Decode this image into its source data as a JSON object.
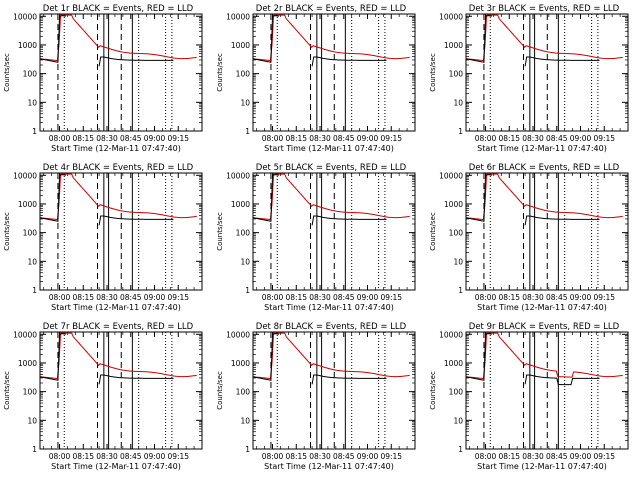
{
  "chart_data": [
    {
      "type": "line",
      "title": "Det 1r BLACK = Events, RED = LLD",
      "xlabel": "Start Time (12-Mar-11 07:47:40)",
      "ylabel": "Counts/sec",
      "yscale": "log",
      "ylim": [
        1,
        12000
      ],
      "xlim": [
        "07:47:40",
        "09:30:00"
      ],
      "xticks": [
        "08:00",
        "08:15",
        "08:30",
        "08:45",
        "09:00",
        "09:15"
      ],
      "yticks": [
        "1",
        "10",
        "100",
        "1000",
        "10000"
      ],
      "series": [
        {
          "name": "BLACK = Events",
          "color": "#000000"
        },
        {
          "name": "RED = LLD",
          "color": "#cc0000"
        }
      ]
    },
    {
      "type": "line",
      "title": "Det 2r BLACK = Events, RED = LLD",
      "xlabel": "Start Time (12-Mar-11 07:47:40)",
      "ylabel": "Counts/sec",
      "yscale": "log",
      "ylim": [
        1,
        12000
      ],
      "xticks": [
        "08:00",
        "08:15",
        "08:30",
        "08:45",
        "09:00",
        "09:15"
      ],
      "yticks": [
        "1",
        "10",
        "100",
        "1000",
        "10000"
      ]
    },
    {
      "type": "line",
      "title": "Det 3r BLACK = Events, RED = LLD",
      "xlabel": "Start Time (12-Mar-11 07:47:40)",
      "ylabel": "Counts/sec",
      "yscale": "log",
      "ylim": [
        1,
        12000
      ],
      "xticks": [
        "08:00",
        "08:15",
        "08:30",
        "08:45",
        "09:00",
        "09:15"
      ],
      "yticks": [
        "1",
        "10",
        "100",
        "1000",
        "10000"
      ]
    },
    {
      "type": "line",
      "title": "Det 4r BLACK = Events, RED = LLD",
      "xlabel": "Start Time (12-Mar-11 07:47:40)",
      "ylabel": "Counts/sec",
      "yscale": "log",
      "ylim": [
        1,
        12000
      ],
      "xticks": [
        "08:00",
        "08:15",
        "08:30",
        "08:45",
        "09:00",
        "09:15"
      ],
      "yticks": [
        "1",
        "10",
        "100",
        "1000",
        "10000"
      ]
    },
    {
      "type": "line",
      "title": "Det 5r BLACK = Events, RED = LLD",
      "xlabel": "Start Time (12-Mar-11 07:47:40)",
      "ylabel": "Counts/sec",
      "yscale": "log",
      "ylim": [
        1,
        12000
      ],
      "xticks": [
        "08:00",
        "08:15",
        "08:30",
        "08:45",
        "09:00",
        "09:15"
      ],
      "yticks": [
        "1",
        "10",
        "100",
        "1000",
        "10000"
      ]
    },
    {
      "type": "line",
      "title": "Det 6r BLACK = Events, RED = LLD",
      "xlabel": "Start Time (12-Mar-11 07:47:40)",
      "ylabel": "Counts/sec",
      "yscale": "log",
      "ylim": [
        1,
        12000
      ],
      "xticks": [
        "08:00",
        "08:15",
        "08:30",
        "08:45",
        "09:00",
        "09:15"
      ],
      "yticks": [
        "1",
        "10",
        "100",
        "1000",
        "10000"
      ]
    },
    {
      "type": "line",
      "title": "Det 7r BLACK = Events, RED = LLD",
      "xlabel": "Start Time (12-Mar-11 07:47:40)",
      "ylabel": "Counts/sec",
      "yscale": "log",
      "ylim": [
        1,
        12000
      ],
      "xticks": [
        "08:00",
        "08:15",
        "08:30",
        "08:45",
        "09:00",
        "09:15"
      ],
      "yticks": [
        "1",
        "10",
        "100",
        "1000",
        "10000"
      ]
    },
    {
      "type": "line",
      "title": "Det 8r BLACK = Events, RED = LLD",
      "xlabel": "Start Time (12-Mar-11 07:47:40)",
      "ylabel": "Counts/sec",
      "yscale": "log",
      "ylim": [
        1,
        12000
      ],
      "xticks": [
        "08:00",
        "08:15",
        "08:30",
        "08:45",
        "09:00",
        "09:15"
      ],
      "yticks": [
        "1",
        "10",
        "100",
        "1000",
        "10000"
      ]
    },
    {
      "type": "line",
      "title": "Det 9r BLACK = Events, RED = LLD",
      "xlabel": "Start Time (12-Mar-11 07:47:40)",
      "ylabel": "Counts/sec",
      "yscale": "log",
      "ylim": [
        1,
        12000
      ],
      "xticks": [
        "08:00",
        "08:15",
        "08:30",
        "08:45",
        "09:00",
        "09:15"
      ],
      "yticks": [
        "1",
        "10",
        "100",
        "1000",
        "10000"
      ]
    }
  ]
}
